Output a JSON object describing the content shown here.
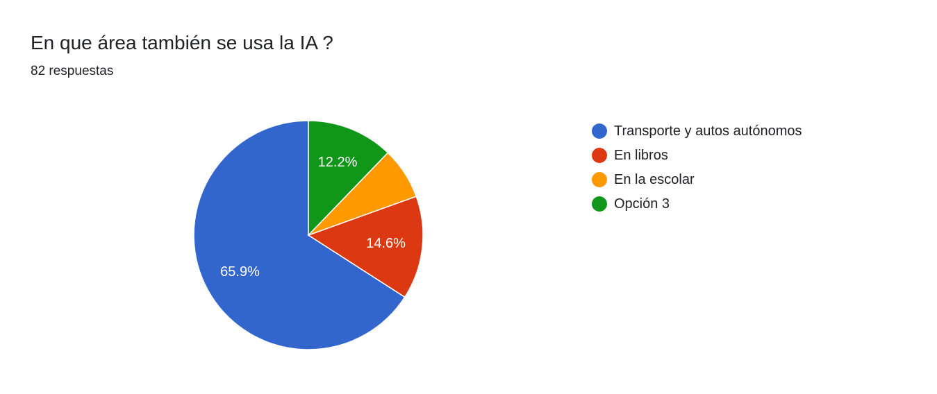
{
  "question": {
    "title": "En que área también se usa la IA ?",
    "responses": "82 respuestas"
  },
  "chart_data": {
    "type": "pie",
    "start_angle_deg": 90,
    "direction": "counterclockwise",
    "legend_position": "right",
    "slices": [
      {
        "name": "Transporte y autos autónomos",
        "value": 65.9,
        "label": "65.9%",
        "color": "#3366cc"
      },
      {
        "name": "En libros",
        "value": 14.6,
        "label": "14.6%",
        "color": "#dc3912"
      },
      {
        "name": "En la escolar",
        "value": 7.3,
        "label": "",
        "color": "#ff9900"
      },
      {
        "name": "Opción 3",
        "value": 12.2,
        "label": "12.2%",
        "color": "#109618"
      }
    ]
  }
}
